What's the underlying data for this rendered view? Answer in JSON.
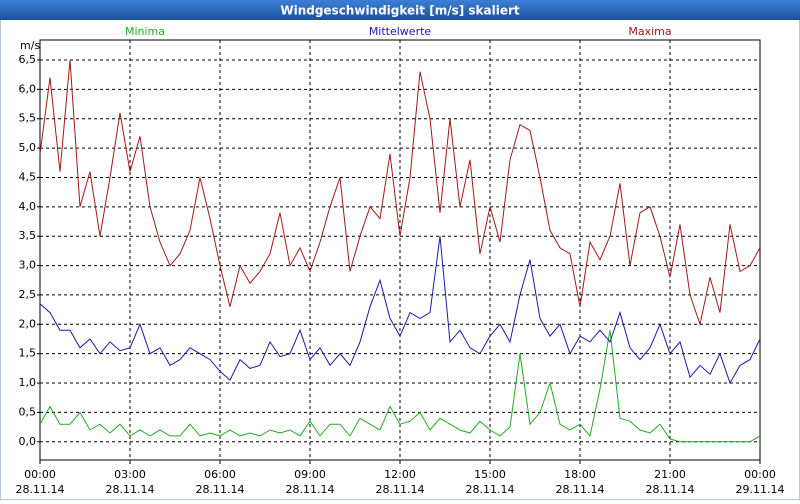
{
  "chart_data": {
    "type": "line",
    "title": "Windgeschwindigkeit [m/s] skaliert",
    "y_label": "m/s",
    "x": [
      0,
      20,
      40,
      60,
      80,
      100,
      120,
      140,
      160,
      180,
      200,
      220,
      240,
      260,
      280,
      300,
      320,
      340,
      360,
      380,
      400,
      420,
      440,
      460,
      480,
      500,
      520,
      540,
      560,
      580,
      600,
      620,
      640,
      660,
      680,
      700,
      720,
      740,
      760,
      780,
      800,
      820,
      840,
      860,
      880,
      900,
      920,
      940,
      960,
      980,
      1000,
      1020,
      1040,
      1060,
      1080,
      1100,
      1120,
      1140,
      1160,
      1180,
      1200,
      1220,
      1240,
      1260,
      1280,
      1300,
      1320,
      1340,
      1360,
      1380,
      1400,
      1420,
      1440
    ],
    "xlim": [
      0,
      1440
    ],
    "xticks": [
      {
        "value": 0,
        "label": "00:00"
      },
      {
        "value": 180,
        "label": "03:00"
      },
      {
        "value": 360,
        "label": "06:00"
      },
      {
        "value": 540,
        "label": "09:00"
      },
      {
        "value": 720,
        "label": "12:00"
      },
      {
        "value": 900,
        "label": "15:00"
      },
      {
        "value": 1080,
        "label": "18:00"
      },
      {
        "value": 1260,
        "label": "21:00"
      },
      {
        "value": 1440,
        "label": "00:00"
      }
    ],
    "xtick_dates": [
      "28.11.14",
      "28.11.14",
      "28.11.14",
      "28.11.14",
      "28.11.14",
      "28.11.14",
      "28.11.14",
      "28.11.14",
      "29.11.14"
    ],
    "ylim": [
      -0.31,
      6.84
    ],
    "yticks": [
      {
        "value": 0,
        "label": "0,0"
      },
      {
        "value": 0.5,
        "label": "0,5"
      },
      {
        "value": 1,
        "label": "1,0"
      },
      {
        "value": 1.5,
        "label": "1,5"
      },
      {
        "value": 2,
        "label": "2,0"
      },
      {
        "value": 2.5,
        "label": "2,5"
      },
      {
        "value": 3,
        "label": "3,0"
      },
      {
        "value": 3.5,
        "label": "3,5"
      },
      {
        "value": 4,
        "label": "4,0"
      },
      {
        "value": 4.5,
        "label": "4,5"
      },
      {
        "value": 5,
        "label": "5,0"
      },
      {
        "value": 5.5,
        "label": "5,5"
      },
      {
        "value": 6,
        "label": "6,0"
      },
      {
        "value": 6.5,
        "label": "6,5"
      }
    ],
    "grid": true,
    "series": [
      {
        "name": "Minima",
        "color": "#22aa22",
        "values": [
          0.3,
          0.6,
          0.3,
          0.3,
          0.5,
          0.2,
          0.3,
          0.15,
          0.3,
          0.1,
          0.2,
          0.1,
          0.2,
          0.1,
          0.1,
          0.3,
          0.1,
          0.15,
          0.1,
          0.2,
          0.1,
          0.15,
          0.1,
          0.2,
          0.15,
          0.2,
          0.1,
          0.35,
          0.1,
          0.3,
          0.3,
          0.1,
          0.4,
          0.3,
          0.2,
          0.6,
          0.3,
          0.35,
          0.5,
          0.2,
          0.4,
          0.3,
          0.2,
          0.15,
          0.35,
          0.2,
          0.1,
          0.25,
          1.5,
          0.3,
          0.5,
          1.0,
          0.3,
          0.2,
          0.3,
          0.1,
          0.9,
          1.9,
          0.4,
          0.35,
          0.2,
          0.15,
          0.3,
          0.05,
          0,
          0,
          0,
          0,
          0,
          0,
          0,
          0,
          0.1
        ]
      },
      {
        "name": "Mittelwerte",
        "color": "#1a1aaa",
        "values": [
          2.35,
          2.2,
          1.9,
          1.9,
          1.6,
          1.75,
          1.5,
          1.7,
          1.55,
          1.6,
          2.0,
          1.5,
          1.6,
          1.3,
          1.4,
          1.6,
          1.5,
          1.4,
          1.2,
          1.05,
          1.4,
          1.25,
          1.3,
          1.7,
          1.45,
          1.5,
          1.9,
          1.4,
          1.6,
          1.3,
          1.5,
          1.3,
          1.7,
          2.3,
          2.75,
          2.1,
          1.8,
          2.2,
          2.1,
          2.2,
          3.5,
          1.7,
          1.9,
          1.6,
          1.5,
          1.8,
          2.0,
          1.7,
          2.5,
          3.1,
          2.1,
          1.8,
          2.0,
          1.5,
          1.8,
          1.7,
          1.9,
          1.7,
          2.2,
          1.6,
          1.4,
          1.6,
          2.0,
          1.5,
          1.7,
          1.1,
          1.3,
          1.15,
          1.5,
          1.0,
          1.3,
          1.4,
          1.75
        ]
      },
      {
        "name": "Maxima",
        "color": "#a01818",
        "values": [
          4.9,
          6.2,
          4.6,
          6.5,
          4.0,
          4.6,
          3.5,
          4.5,
          5.6,
          4.6,
          5.2,
          4.0,
          3.4,
          3.0,
          3.2,
          3.6,
          4.5,
          3.8,
          3.0,
          2.3,
          3.0,
          2.7,
          2.9,
          3.2,
          3.9,
          3.0,
          3.3,
          2.9,
          3.4,
          4.0,
          4.5,
          2.9,
          3.5,
          4.0,
          3.8,
          4.9,
          3.5,
          4.5,
          6.3,
          5.5,
          3.9,
          5.5,
          4.0,
          4.8,
          3.2,
          4.0,
          3.4,
          4.8,
          5.4,
          5.3,
          4.5,
          3.6,
          3.3,
          3.2,
          2.3,
          3.4,
          3.1,
          3.5,
          4.4,
          3.0,
          3.9,
          4.0,
          3.5,
          2.8,
          3.7,
          2.5,
          2.0,
          2.8,
          2.2,
          3.7,
          2.9,
          3.0,
          3.3
        ]
      }
    ]
  }
}
